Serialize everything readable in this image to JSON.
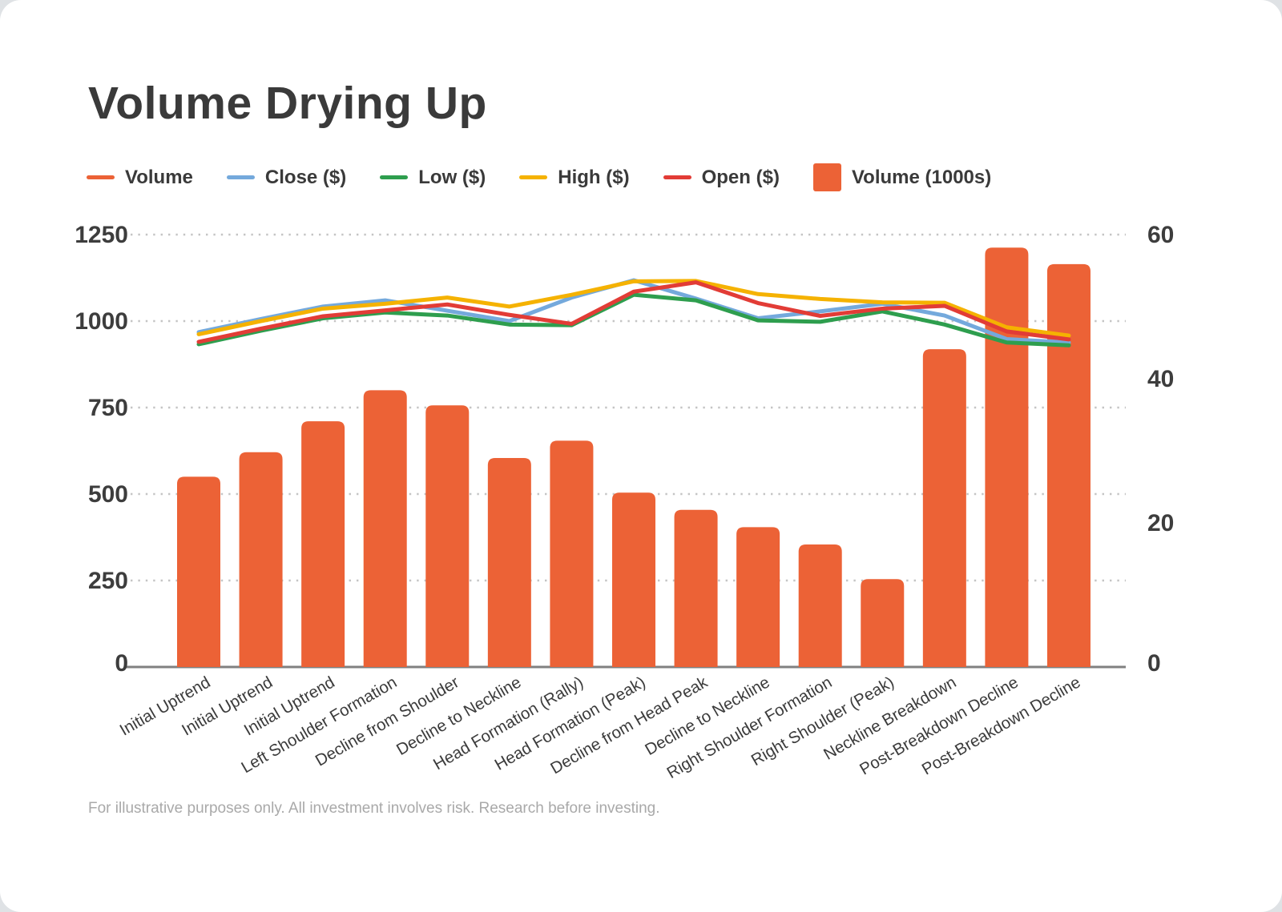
{
  "card": {
    "title": "Volume Drying Up",
    "footnote": "For illustrative purposes only. All investment involves risk. Research before investing."
  },
  "legend": {
    "items": [
      {
        "label": "Volume",
        "color": "#EC6236",
        "swatch": "line"
      },
      {
        "label": "Close ($)",
        "color": "#74A9DC",
        "swatch": "line"
      },
      {
        "label": "Low ($)",
        "color": "#2E9E4E",
        "swatch": "line"
      },
      {
        "label": "High ($)",
        "color": "#F5B201",
        "swatch": "line"
      },
      {
        "label": "Open ($)",
        "color": "#E23C36",
        "swatch": "line"
      },
      {
        "label": "Volume (1000s)",
        "color": "#EC6236",
        "swatch": "square"
      }
    ]
  },
  "chart_data": {
    "type": "bar",
    "subtype": "combo bar + multi-line, dual axis",
    "title": "Volume Drying Up",
    "categories": [
      "Initial Uptrend",
      "Initial Uptrend",
      "Initial Uptrend",
      "Left Shoulder Formation",
      "Decline from Shoulder",
      "Decline to Neckline",
      "Head Formation (Rally)",
      "Head Formation (Peak)",
      "Decline from Head Peak",
      "Decline to Neckline",
      "Right Shoulder Formation",
      "Right Shoulder (Peak)",
      "Neckline Breakdown",
      "Post-Breakdown Decline",
      "Post-Breakdown Decline"
    ],
    "bar_series": {
      "name": "Volume (1000s)",
      "axis": "right",
      "color": "#EC6236",
      "values": [
        26.4,
        29.8,
        34.1,
        38.4,
        36.3,
        29.0,
        31.4,
        24.2,
        21.8,
        19.4,
        17.0,
        12.2,
        44.1,
        58.2,
        55.9
      ]
    },
    "line_series": [
      {
        "name": "Close ($)",
        "axis": "left",
        "color": "#74A9DC",
        "values": [
          968,
          1006,
          1042,
          1060,
          1030,
          1000,
          1068,
          1118,
          1065,
          1008,
          1028,
          1050,
          1016,
          948,
          938
        ]
      },
      {
        "name": "Low ($)",
        "axis": "left",
        "color": "#2E9E4E",
        "values": [
          933,
          972,
          1008,
          1025,
          1016,
          990,
          988,
          1076,
          1060,
          1002,
          998,
          1028,
          990,
          938,
          930
        ]
      },
      {
        "name": "High ($)",
        "axis": "left",
        "color": "#F5B201",
        "values": [
          962,
          1000,
          1036,
          1050,
          1068,
          1042,
          1076,
          1115,
          1116,
          1078,
          1064,
          1054,
          1053,
          982,
          958
        ]
      },
      {
        "name": "Open ($)",
        "axis": "left",
        "color": "#E23C36",
        "values": [
          940,
          978,
          1014,
          1031,
          1048,
          1018,
          992,
          1085,
          1112,
          1052,
          1015,
          1036,
          1044,
          970,
          947
        ]
      }
    ],
    "left_axis": {
      "ticks": [
        0,
        250,
        500,
        750,
        1000,
        1250
      ],
      "range": [
        0,
        1250
      ]
    },
    "right_axis": {
      "ticks": [
        0,
        20,
        40,
        60
      ],
      "range": [
        0,
        60
      ]
    },
    "grid": "dotted horizontal gridlines, solid baseline",
    "legend_position": "top-left",
    "colors": {
      "bar": "#EC6236",
      "grid_dots": "#c4c4c4",
      "baseline": "#808080",
      "tick_text": "#3d3d3d",
      "axis_label_text": "#3b3b3b"
    }
  }
}
